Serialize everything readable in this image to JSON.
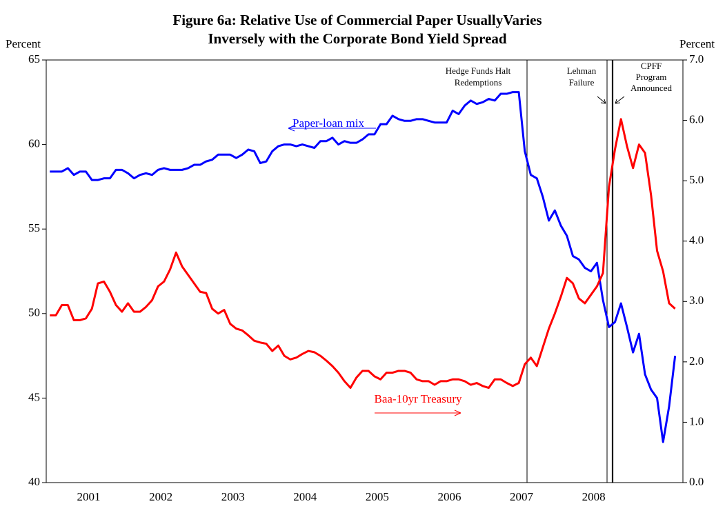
{
  "chart_data": {
    "type": "line",
    "title": [
      "Figure 6a: Relative Use of Commercial Paper UsuallyVaries",
      "Inversely with the Corporate Bond Yield Spread"
    ],
    "ylabel": "Percent",
    "y2label": "Percent",
    "categories": [
      null,
      null,
      null,
      null,
      null,
      null,
      "2001",
      null,
      null,
      null,
      null,
      null,
      null,
      null,
      null,
      null,
      null,
      null,
      "2002",
      null,
      null,
      null,
      null,
      null,
      null,
      null,
      null,
      null,
      null,
      null,
      "2003",
      null,
      null,
      null,
      null,
      null,
      null,
      null,
      null,
      null,
      null,
      null,
      "2004",
      null,
      null,
      null,
      null,
      null,
      null,
      null,
      null,
      null,
      null,
      null,
      "2005",
      null,
      null,
      null,
      null,
      null,
      null,
      null,
      null,
      null,
      null,
      null,
      "2006",
      null,
      null,
      null,
      null,
      null,
      null,
      null,
      null,
      null,
      null,
      null,
      "2007",
      null,
      null,
      null,
      null,
      null,
      null,
      null,
      null,
      null,
      null,
      null,
      "2008",
      null,
      null,
      null,
      null,
      null,
      null,
      null,
      null,
      null,
      null,
      null,
      null,
      null,
      null
    ],
    "ylim": [
      40,
      65
    ],
    "yticks": [
      40,
      45,
      50,
      55,
      60,
      65
    ],
    "y2lim": [
      0,
      7
    ],
    "y2ticks": [
      {
        "value": 0,
        "label": "0.0"
      },
      {
        "value": 1,
        "label": "1.0"
      },
      {
        "value": 2,
        "label": "2.0"
      },
      {
        "value": 3,
        "label": "3.0"
      },
      {
        "value": 4,
        "label": "4.0"
      },
      {
        "value": 5,
        "label": "5.0"
      },
      {
        "value": 6,
        "label": "6.0"
      },
      {
        "value": 7,
        "label": "7.0"
      }
    ],
    "series": [
      {
        "name": "Paper-loan mix",
        "color": "#0000ff",
        "axis": "y",
        "values": [
          58.4,
          58.4,
          58.4,
          58.6,
          58.2,
          58.4,
          58.4,
          57.9,
          57.9,
          58.0,
          58.0,
          58.5,
          58.5,
          58.3,
          58.0,
          58.2,
          58.3,
          58.2,
          58.5,
          58.6,
          58.5,
          58.5,
          58.5,
          58.6,
          58.8,
          58.8,
          59.0,
          59.1,
          59.4,
          59.4,
          59.4,
          59.2,
          59.4,
          59.7,
          59.6,
          58.9,
          59.0,
          59.6,
          59.9,
          60.0,
          60.0,
          59.9,
          60.0,
          59.9,
          59.8,
          60.2,
          60.2,
          60.4,
          60.0,
          60.2,
          60.1,
          60.1,
          60.3,
          60.6,
          60.6,
          61.2,
          61.2,
          61.7,
          61.5,
          61.4,
          61.4,
          61.5,
          61.5,
          61.4,
          61.3,
          61.3,
          61.3,
          62.0,
          61.8,
          62.3,
          62.6,
          62.4,
          62.5,
          62.7,
          62.6,
          63.0,
          63.0,
          63.1,
          63.1,
          59.6,
          58.2,
          58.0,
          56.9,
          55.5,
          56.1,
          55.2,
          54.6,
          53.4,
          53.2,
          52.7,
          52.5,
          53.0,
          50.8,
          49.2,
          49.5,
          50.6,
          49.2,
          47.7,
          48.8,
          46.4,
          45.5,
          45.0,
          42.4,
          44.5,
          47.5
        ]
      },
      {
        "name": "Baa-10yr Treasury",
        "color": "#ff0000",
        "axis": "y2",
        "values": [
          2.77,
          2.77,
          2.94,
          2.94,
          2.69,
          2.69,
          2.72,
          2.88,
          3.3,
          3.33,
          3.16,
          2.94,
          2.83,
          2.97,
          2.83,
          2.83,
          2.91,
          3.02,
          3.25,
          3.33,
          3.53,
          3.81,
          3.58,
          3.44,
          3.3,
          3.16,
          3.14,
          2.88,
          2.8,
          2.86,
          2.63,
          2.55,
          2.52,
          2.44,
          2.35,
          2.32,
          2.3,
          2.18,
          2.27,
          2.1,
          2.04,
          2.07,
          2.13,
          2.18,
          2.16,
          2.1,
          2.02,
          1.93,
          1.82,
          1.68,
          1.57,
          1.74,
          1.85,
          1.85,
          1.76,
          1.71,
          1.82,
          1.82,
          1.85,
          1.85,
          1.82,
          1.71,
          1.68,
          1.68,
          1.62,
          1.68,
          1.68,
          1.71,
          1.71,
          1.68,
          1.62,
          1.65,
          1.6,
          1.57,
          1.71,
          1.71,
          1.65,
          1.6,
          1.65,
          1.96,
          2.07,
          1.93,
          2.24,
          2.55,
          2.8,
          3.08,
          3.39,
          3.3,
          3.05,
          2.97,
          3.11,
          3.25,
          3.47,
          4.9,
          5.52,
          6.02,
          5.57,
          5.21,
          5.6,
          5.46,
          4.76,
          3.84,
          3.5,
          2.97,
          2.88
        ]
      }
    ],
    "annotations": [
      {
        "lines": [
          "Hedge Funds Halt",
          "Redemptions"
        ]
      },
      {
        "lines": [
          "Lehman",
          "Failure"
        ]
      },
      {
        "lines": [
          "CPFF",
          "Program",
          "Announced"
        ]
      }
    ]
  }
}
